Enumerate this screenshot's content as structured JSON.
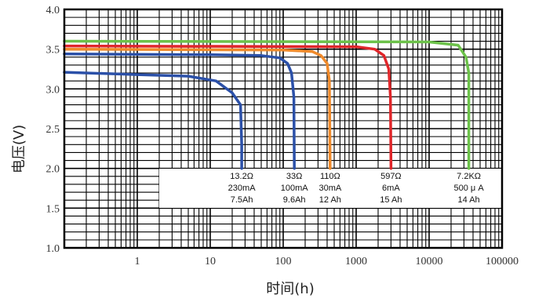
{
  "chart_data": {
    "type": "line",
    "title": "",
    "xlabel": "时间(h)",
    "ylabel": "电压(V)",
    "x_scale": "log",
    "xlim": [
      0.1,
      100000
    ],
    "ylim": [
      1.0,
      4.0
    ],
    "x_tick_labels": [
      "1",
      "10",
      "100",
      "1000",
      "10000",
      "100000"
    ],
    "y_tick_labels": [
      "1.0",
      "1.5",
      "2.0",
      "2.5",
      "3.0",
      "3.5",
      "4.0"
    ],
    "grid": true,
    "series": [
      {
        "color": "#2b50a8",
        "points": [
          [
            0.1,
            3.21
          ],
          [
            1,
            3.18
          ],
          [
            5,
            3.16
          ],
          [
            12,
            3.1
          ],
          [
            20,
            2.95
          ],
          [
            26,
            2.8
          ],
          [
            27,
            2.3
          ],
          [
            27,
            2.0
          ]
        ],
        "annotation": [
          "13.2Ω",
          "230mA",
          "7.5Ah"
        ]
      },
      {
        "color": "#2b50a8",
        "points": [
          [
            0.1,
            3.44
          ],
          [
            10,
            3.43
          ],
          [
            50,
            3.42
          ],
          [
            90,
            3.39
          ],
          [
            115,
            3.32
          ],
          [
            130,
            3.2
          ],
          [
            140,
            2.9
          ],
          [
            142,
            2.0
          ]
        ],
        "annotation": [
          "33Ω",
          "100mA",
          "9.6Ah"
        ]
      },
      {
        "color": "#f08a2a",
        "points": [
          [
            0.1,
            3.5
          ],
          [
            100,
            3.49
          ],
          [
            250,
            3.47
          ],
          [
            330,
            3.42
          ],
          [
            400,
            3.32
          ],
          [
            430,
            3.1
          ],
          [
            440,
            2.0
          ]
        ],
        "annotation": [
          "110Ω",
          "30mA",
          "12 Ah"
        ]
      },
      {
        "color": "#e0262a",
        "points": [
          [
            0.1,
            3.54
          ],
          [
            1000,
            3.53
          ],
          [
            1800,
            3.5
          ],
          [
            2400,
            3.42
          ],
          [
            2800,
            3.25
          ],
          [
            2950,
            2.9
          ],
          [
            3000,
            2.0
          ]
        ],
        "annotation": [
          "597Ω",
          "6mA",
          "15 Ah"
        ]
      },
      {
        "color": "#6cc24a",
        "points": [
          [
            0.1,
            3.6
          ],
          [
            10000,
            3.59
          ],
          [
            25000,
            3.55
          ],
          [
            32000,
            3.4
          ],
          [
            35000,
            3.2
          ],
          [
            35000,
            2.0
          ]
        ],
        "annotation": [
          "7.2KΩ",
          "500 μ A",
          "14 Ah"
        ]
      }
    ]
  }
}
